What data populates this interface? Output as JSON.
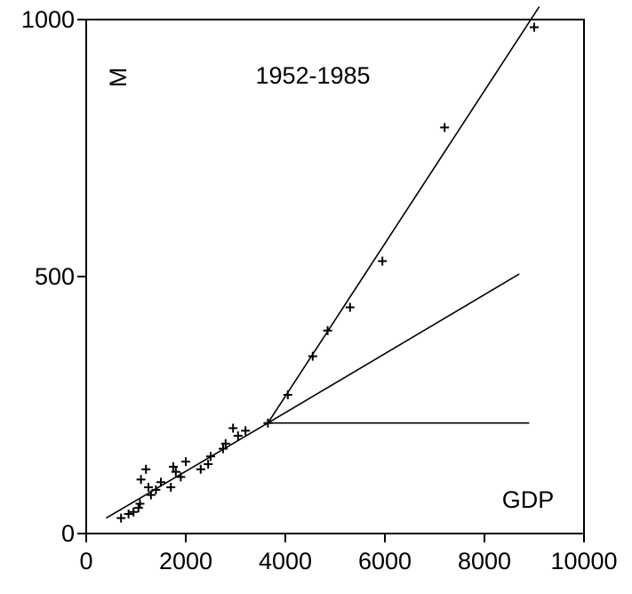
{
  "chart_data": {
    "type": "scatter",
    "title": "1952-1985",
    "xlabel": "GDP",
    "ylabel": "M",
    "xlim": [
      0,
      10000
    ],
    "ylim": [
      0,
      1000
    ],
    "xticks": [
      0,
      2000,
      4000,
      6000,
      8000,
      10000
    ],
    "yticks": [
      0,
      500,
      1000
    ],
    "xtick_labels": [
      "0",
      "2000",
      "4000",
      "6000",
      "8000",
      "10000"
    ],
    "ytick_labels": [
      "0",
      "500",
      "1000"
    ],
    "grid": false,
    "points": [
      {
        "x": 700,
        "y": 30
      },
      {
        "x": 850,
        "y": 38
      },
      {
        "x": 950,
        "y": 42
      },
      {
        "x": 1050,
        "y": 50
      },
      {
        "x": 1080,
        "y": 58
      },
      {
        "x": 1100,
        "y": 105
      },
      {
        "x": 1200,
        "y": 125
      },
      {
        "x": 1250,
        "y": 90
      },
      {
        "x": 1300,
        "y": 75
      },
      {
        "x": 1400,
        "y": 85
      },
      {
        "x": 1500,
        "y": 100
      },
      {
        "x": 1700,
        "y": 90
      },
      {
        "x": 1750,
        "y": 130
      },
      {
        "x": 1800,
        "y": 120
      },
      {
        "x": 1900,
        "y": 110
      },
      {
        "x": 2000,
        "y": 140
      },
      {
        "x": 2300,
        "y": 125
      },
      {
        "x": 2450,
        "y": 135
      },
      {
        "x": 2500,
        "y": 150
      },
      {
        "x": 2750,
        "y": 165
      },
      {
        "x": 2800,
        "y": 175
      },
      {
        "x": 2950,
        "y": 205
      },
      {
        "x": 3050,
        "y": 190
      },
      {
        "x": 3200,
        "y": 200
      },
      {
        "x": 3650,
        "y": 215
      },
      {
        "x": 4050,
        "y": 270
      },
      {
        "x": 4550,
        "y": 345
      },
      {
        "x": 4850,
        "y": 395
      },
      {
        "x": 5300,
        "y": 440
      },
      {
        "x": 5950,
        "y": 530
      },
      {
        "x": 7200,
        "y": 790
      },
      {
        "x": 9000,
        "y": 985
      }
    ],
    "lines": [
      {
        "x": [
          400,
          3650
        ],
        "y": [
          30,
          215
        ]
      },
      {
        "x": [
          3650,
          9100
        ],
        "y": [
          215,
          1025
        ]
      },
      {
        "x": [
          3650,
          8700
        ],
        "y": [
          215,
          505
        ]
      },
      {
        "x": [
          3650,
          8900
        ],
        "y": [
          215,
          215
        ]
      }
    ]
  }
}
